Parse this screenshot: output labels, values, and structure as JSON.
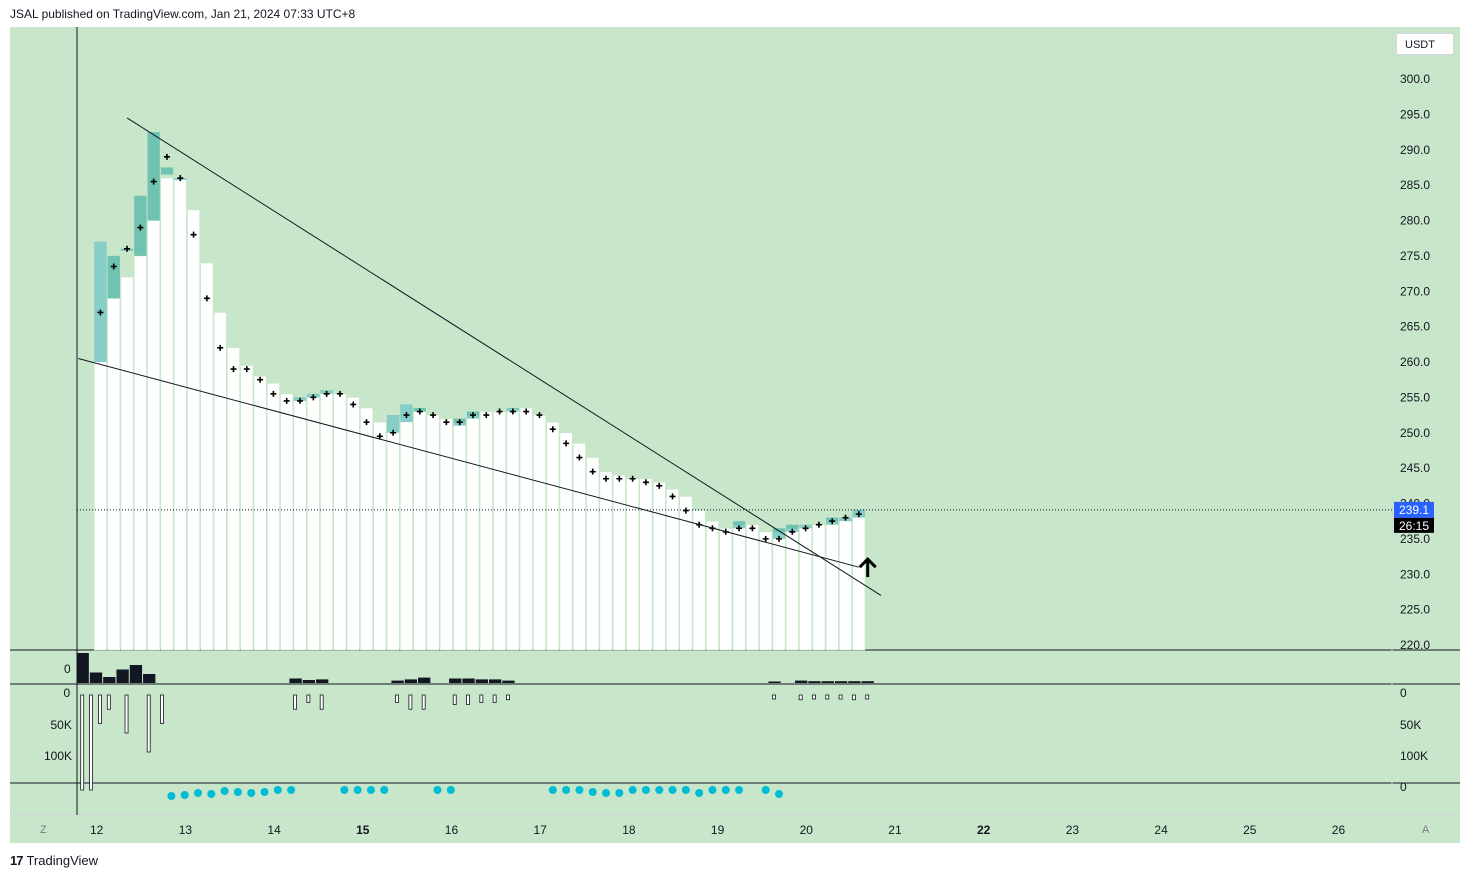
{
  "header": {
    "published_line": "JSAL published on TradingView.com, Jan 21, 2024 07:33 UTC+8"
  },
  "footer": {
    "brand": "TradingView",
    "logo": "17"
  },
  "price_axis": {
    "currency": "USDT",
    "labels": [
      "300.0",
      "295.0",
      "290.0",
      "285.0",
      "280.0",
      "275.0",
      "270.0",
      "265.0",
      "260.0",
      "255.0",
      "250.0",
      "245.0",
      "240.0",
      "235.0",
      "230.0",
      "225.0",
      "220.0"
    ],
    "current_price": "239.1",
    "countdown": "26:15"
  },
  "time_axis": {
    "labels": [
      "12",
      "13",
      "14",
      "15",
      "16",
      "17",
      "18",
      "19",
      "20",
      "21",
      "22",
      "23",
      "24",
      "25",
      "26"
    ],
    "left_button": "Z",
    "right_button": "A"
  },
  "panes": {
    "pane2_zero": "0",
    "pane3_left_labels": [
      "0",
      "50K",
      "100K"
    ],
    "pane3_right_labels": [
      "0",
      "50K",
      "100K"
    ],
    "pane4_zero": "0"
  },
  "colors": {
    "background": "#c8e6c9",
    "candle_teal": "#26a69a",
    "histogram_white": "#ffffff",
    "dot_cyan": "#00bcd4",
    "current_price_bg": "#2962ff",
    "countdown_bg": "#000000"
  },
  "chart_data": {
    "type": "candlestick",
    "ylim": [
      220,
      300
    ],
    "x_range_days": [
      11.8,
      26.6
    ],
    "current_price": 239.1,
    "bars": [
      {
        "t": 12.05,
        "open": 260,
        "high": 277.5,
        "low": 259.5,
        "close": 277,
        "marker": 267,
        "hist": 277
      },
      {
        "t": 12.2,
        "open": 269,
        "high": 275.5,
        "low": 268.5,
        "close": 275,
        "marker": 273.5,
        "hist": 269
      },
      {
        "t": 12.35,
        "open": 276,
        "high": 276.5,
        "low": 275.5,
        "close": 276,
        "marker": 276,
        "hist": 272
      },
      {
        "t": 12.5,
        "open": 275,
        "high": 284,
        "low": 274.5,
        "close": 283.5,
        "marker": 279,
        "hist": 275
      },
      {
        "t": 12.65,
        "open": 280,
        "high": 293,
        "low": 279.5,
        "close": 292.5,
        "marker": 285.5,
        "hist": 280
      },
      {
        "t": 12.8,
        "open": 286.5,
        "high": 287.5,
        "low": 286,
        "close": 287.5,
        "marker": 289,
        "hist": 286
      },
      {
        "t": 12.95,
        "open": 286,
        "high": 286,
        "low": 286,
        "close": 286,
        "marker": 286,
        "hist": 286
      },
      {
        "t": 13.1,
        "marker": 278,
        "hist": 281.5
      },
      {
        "t": 13.25,
        "marker": 269,
        "hist": 274
      },
      {
        "t": 13.4,
        "marker": 262,
        "hist": 267
      },
      {
        "t": 13.55,
        "marker": 259,
        "hist": 262
      },
      {
        "t": 13.7,
        "marker": 259,
        "hist": 259.5
      },
      {
        "t": 13.85,
        "marker": 257.5,
        "hist": 258
      },
      {
        "t": 14.0,
        "marker": 255.5,
        "hist": 257
      },
      {
        "t": 14.15,
        "marker": 254.5,
        "hist": 255.5
      },
      {
        "t": 14.3,
        "open": 254.5,
        "high": 255,
        "low": 254,
        "close": 255,
        "marker": 254.5,
        "hist": 255
      },
      {
        "t": 14.45,
        "open": 255,
        "high": 255.5,
        "low": 254.5,
        "close": 255.5,
        "marker": 255,
        "hist": 255.5
      },
      {
        "t": 14.6,
        "open": 255.5,
        "high": 256,
        "low": 255,
        "close": 256,
        "marker": 255.5,
        "hist": 256
      },
      {
        "t": 14.75,
        "marker": 255.5,
        "hist": 255.5
      },
      {
        "t": 14.9,
        "marker": 254,
        "hist": 255
      },
      {
        "t": 15.05,
        "marker": 251.5,
        "hist": 253.5
      },
      {
        "t": 15.2,
        "marker": 249.5,
        "hist": 251.5
      },
      {
        "t": 15.35,
        "open": 250,
        "high": 252.5,
        "low": 249.5,
        "close": 252.5,
        "marker": 250,
        "hist": 252.5
      },
      {
        "t": 15.5,
        "open": 251.5,
        "high": 254,
        "low": 251,
        "close": 254,
        "marker": 252.5,
        "hist": 254
      },
      {
        "t": 15.65,
        "open": 253,
        "high": 253.5,
        "low": 252.5,
        "close": 253.5,
        "marker": 253,
        "hist": 253
      },
      {
        "t": 15.8,
        "marker": 252.5,
        "hist": 252.5
      },
      {
        "t": 15.95,
        "marker": 251.5,
        "hist": 252
      },
      {
        "t": 16.1,
        "open": 251,
        "high": 252,
        "low": 250.5,
        "close": 252,
        "marker": 251.5,
        "hist": 251.5
      },
      {
        "t": 16.25,
        "open": 252,
        "high": 253,
        "low": 251.5,
        "close": 253,
        "marker": 252.5,
        "hist": 252.5
      },
      {
        "t": 16.4,
        "marker": 252.5,
        "hist": 253
      },
      {
        "t": 16.55,
        "marker": 253,
        "hist": 253
      },
      {
        "t": 16.7,
        "open": 253,
        "high": 253.5,
        "low": 252.5,
        "close": 253.5,
        "marker": 253,
        "hist": 253.5
      },
      {
        "t": 16.85,
        "marker": 253,
        "hist": 253.5
      },
      {
        "t": 17.0,
        "marker": 252.5,
        "hist": 252.5
      },
      {
        "t": 17.15,
        "marker": 250.5,
        "hist": 251.5
      },
      {
        "t": 17.3,
        "marker": 248.5,
        "hist": 250
      },
      {
        "t": 17.45,
        "marker": 246.5,
        "hist": 248.5
      },
      {
        "t": 17.6,
        "marker": 244.5,
        "hist": 246.5
      },
      {
        "t": 17.75,
        "marker": 243.5,
        "hist": 244.5
      },
      {
        "t": 17.9,
        "marker": 243.5,
        "hist": 244
      },
      {
        "t": 18.05,
        "marker": 243.5,
        "hist": 243.5
      },
      {
        "t": 18.2,
        "marker": 243,
        "hist": 243.5
      },
      {
        "t": 18.35,
        "marker": 242.5,
        "hist": 243
      },
      {
        "t": 18.5,
        "marker": 241,
        "hist": 242
      },
      {
        "t": 18.65,
        "marker": 239,
        "hist": 241
      },
      {
        "t": 18.8,
        "marker": 237,
        "hist": 239
      },
      {
        "t": 18.95,
        "marker": 236.5,
        "hist": 237.5
      },
      {
        "t": 19.1,
        "marker": 236,
        "hist": 236.5
      },
      {
        "t": 19.25,
        "open": 236.5,
        "high": 237.5,
        "low": 236,
        "close": 237.5,
        "marker": 236.5,
        "hist": 237
      },
      {
        "t": 19.4,
        "marker": 236.5,
        "hist": 237
      },
      {
        "t": 19.55,
        "marker": 235,
        "hist": 236
      },
      {
        "t": 19.7,
        "open": 235,
        "high": 236.5,
        "low": 234.5,
        "close": 236.5,
        "marker": 235,
        "hist": 236
      },
      {
        "t": 19.85,
        "open": 236,
        "high": 237,
        "low": 235.5,
        "close": 237,
        "marker": 236,
        "hist": 236.5
      },
      {
        "t": 20.0,
        "open": 236.5,
        "high": 237.5,
        "low": 236,
        "close": 237,
        "marker": 236.5,
        "hist": 237
      },
      {
        "t": 20.15,
        "marker": 237,
        "hist": 237
      },
      {
        "t": 20.3,
        "open": 237,
        "high": 238,
        "low": 236.5,
        "close": 238,
        "marker": 237.5,
        "hist": 237.5
      },
      {
        "t": 20.45,
        "open": 237.5,
        "high": 238,
        "low": 237,
        "close": 238,
        "marker": 238,
        "hist": 238
      },
      {
        "t": 20.6,
        "open": 238,
        "high": 239.5,
        "low": 237.5,
        "close": 239.1,
        "marker": 238.5,
        "hist": 239
      }
    ],
    "trendlines": [
      {
        "name": "",
        "from": {
          "t": 12.35,
          "price": 294.5
        },
        "to": {
          "t": 20.85,
          "price": 227
        }
      },
      {
        "name": "",
        "from": {
          "t": 11.8,
          "price": 260.5
        },
        "to": {
          "t": 20.6,
          "price": 231
        }
      }
    ],
    "annotation_arrow": {
      "t": 20.7,
      "price": 231,
      "direction": "up"
    },
    "volume_bars": [
      {
        "t": 11.85,
        "v": 1.0
      },
      {
        "t": 12.0,
        "v": 0.35
      },
      {
        "t": 12.15,
        "v": 0.2
      },
      {
        "t": 12.3,
        "v": 0.45
      },
      {
        "t": 12.45,
        "v": 0.6
      },
      {
        "t": 12.6,
        "v": 0.3
      },
      {
        "t": 14.25,
        "v": 0.15
      },
      {
        "t": 14.4,
        "v": 0.1
      },
      {
        "t": 14.55,
        "v": 0.12
      },
      {
        "t": 15.4,
        "v": 0.08
      },
      {
        "t": 15.55,
        "v": 0.12
      },
      {
        "t": 15.7,
        "v": 0.18
      },
      {
        "t": 16.05,
        "v": 0.15
      },
      {
        "t": 16.2,
        "v": 0.15
      },
      {
        "t": 16.35,
        "v": 0.12
      },
      {
        "t": 16.5,
        "v": 0.12
      },
      {
        "t": 16.65,
        "v": 0.08
      },
      {
        "t": 19.65,
        "v": 0.05
      },
      {
        "t": 19.95,
        "v": 0.08
      },
      {
        "t": 20.1,
        "v": 0.06
      },
      {
        "t": 20.25,
        "v": 0.06
      },
      {
        "t": 20.4,
        "v": 0.06
      },
      {
        "t": 20.55,
        "v": 0.06
      },
      {
        "t": 20.7,
        "v": 0.06
      }
    ],
    "negative_volume_ticks": [
      {
        "t": 11.85,
        "v": 100
      },
      {
        "t": 11.95,
        "v": 100
      },
      {
        "t": 12.05,
        "v": 30
      },
      {
        "t": 12.15,
        "v": 15
      },
      {
        "t": 12.35,
        "v": 40
      },
      {
        "t": 12.6,
        "v": 60
      },
      {
        "t": 12.75,
        "v": 30
      },
      {
        "t": 14.25,
        "v": 15
      },
      {
        "t": 14.4,
        "v": 8
      },
      {
        "t": 14.55,
        "v": 15
      },
      {
        "t": 15.4,
        "v": 8
      },
      {
        "t": 15.55,
        "v": 15
      },
      {
        "t": 15.7,
        "v": 15
      },
      {
        "t": 16.05,
        "v": 10
      },
      {
        "t": 16.2,
        "v": 10
      },
      {
        "t": 16.35,
        "v": 8
      },
      {
        "t": 16.5,
        "v": 8
      },
      {
        "t": 16.65,
        "v": 5
      },
      {
        "t": 19.65,
        "v": 3
      },
      {
        "t": 19.95,
        "v": 5
      },
      {
        "t": 20.1,
        "v": 3
      },
      {
        "t": 20.25,
        "v": 3
      },
      {
        "t": 20.4,
        "v": 3
      },
      {
        "t": 20.55,
        "v": 5
      },
      {
        "t": 20.7,
        "v": 3
      }
    ],
    "dots": [
      {
        "t": 12.85,
        "y": -0.6
      },
      {
        "t": 13.0,
        "y": -0.5
      },
      {
        "t": 13.15,
        "y": -0.3
      },
      {
        "t": 13.3,
        "y": -0.4
      },
      {
        "t": 13.45,
        "y": -0.1
      },
      {
        "t": 13.6,
        "y": -0.2
      },
      {
        "t": 13.75,
        "y": -0.3
      },
      {
        "t": 13.9,
        "y": -0.2
      },
      {
        "t": 14.05,
        "y": 0
      },
      {
        "t": 14.2,
        "y": 0
      },
      {
        "t": 14.8,
        "y": 0
      },
      {
        "t": 14.95,
        "y": 0
      },
      {
        "t": 15.1,
        "y": 0
      },
      {
        "t": 15.25,
        "y": 0
      },
      {
        "t": 15.85,
        "y": 0
      },
      {
        "t": 16.0,
        "y": 0
      },
      {
        "t": 17.15,
        "y": 0
      },
      {
        "t": 17.3,
        "y": 0
      },
      {
        "t": 17.45,
        "y": 0
      },
      {
        "t": 17.6,
        "y": -0.2
      },
      {
        "t": 17.75,
        "y": -0.3
      },
      {
        "t": 17.9,
        "y": -0.3
      },
      {
        "t": 18.05,
        "y": 0
      },
      {
        "t": 18.2,
        "y": 0
      },
      {
        "t": 18.35,
        "y": 0
      },
      {
        "t": 18.5,
        "y": 0
      },
      {
        "t": 18.65,
        "y": 0
      },
      {
        "t": 18.8,
        "y": -0.3
      },
      {
        "t": 18.95,
        "y": 0
      },
      {
        "t": 19.1,
        "y": 0
      },
      {
        "t": 19.25,
        "y": 0
      },
      {
        "t": 19.55,
        "y": 0
      },
      {
        "t": 19.7,
        "y": -0.4
      }
    ]
  }
}
